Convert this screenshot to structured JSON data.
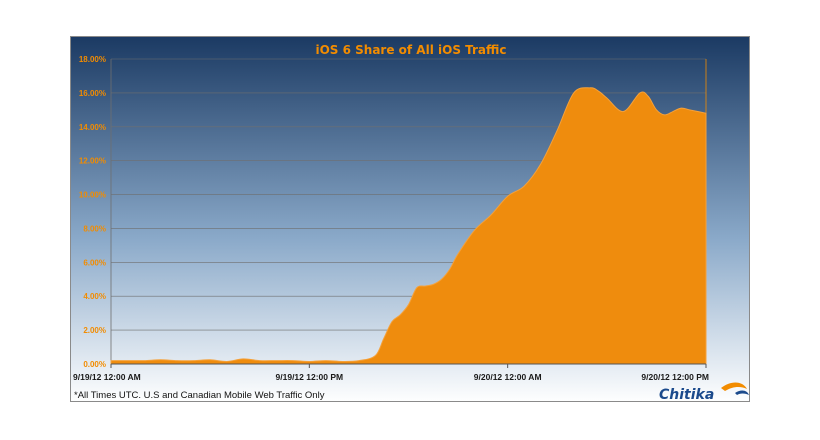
{
  "colors": {
    "bg_top": "#1b3a63",
    "bg_mid": "#8aa9c9",
    "bg_bottom": "#ffffff",
    "area_fill": "#ef8c0d",
    "area_edge": "#f5a13a",
    "title": "#f28c00",
    "ytick": "#f28c00",
    "grid": "#6f6f6f",
    "brand": "#1b4a8c",
    "brand_accent": "#f28c00"
  },
  "footnote": "*All Times UTC. U.S and Canadian Mobile Web Traffic Only",
  "brand": {
    "name": "Chitika",
    "logo_icon": "swoosh-icon"
  },
  "chart_data": {
    "type": "area",
    "title": "iOS 6 Share of All iOS Traffic",
    "xlabel": "",
    "ylabel": "",
    "ylim": [
      0,
      18
    ],
    "grid": true,
    "legend": "none",
    "y_ticks": [
      "0.00%",
      "2.00%",
      "4.00%",
      "6.00%",
      "8.00%",
      "10.00%",
      "12.00%",
      "14.00%",
      "16.00%",
      "18.00%"
    ],
    "x_ticks": [
      {
        "hour": 0,
        "label": "9/19/12 12:00 AM"
      },
      {
        "hour": 12,
        "label": "9/19/12 12:00 PM"
      },
      {
        "hour": 24,
        "label": "9/20/12 12:00 AM"
      },
      {
        "hour": 36,
        "label": "9/20/12 12:00 PM"
      }
    ],
    "x_unit": "hours from 9/19/12 12:00 AM UTC",
    "series": [
      {
        "x": [
          0,
          1,
          2,
          3,
          4,
          5,
          6,
          7,
          8,
          9,
          10,
          11,
          12,
          13,
          14,
          15,
          16,
          16.5,
          17,
          17.5,
          18,
          18.5,
          19,
          19.5,
          20,
          20.5,
          21,
          22,
          23,
          24,
          25,
          26,
          27,
          28,
          29,
          29.5,
          30,
          31,
          32,
          32.5,
          33,
          33.5,
          34,
          34.5,
          35,
          35.5,
          36
        ],
        "y": [
          0.2,
          0.2,
          0.2,
          0.25,
          0.2,
          0.2,
          0.25,
          0.15,
          0.3,
          0.2,
          0.2,
          0.2,
          0.15,
          0.2,
          0.15,
          0.2,
          0.5,
          1.5,
          2.5,
          2.9,
          3.5,
          4.5,
          4.6,
          4.7,
          5.0,
          5.6,
          6.5,
          7.9,
          8.8,
          9.9,
          10.5,
          11.8,
          13.8,
          16.0,
          16.3,
          16.1,
          15.7,
          14.9,
          16.0,
          15.8,
          15.0,
          14.7,
          14.9,
          15.1,
          15.0,
          14.9,
          14.8
        ]
      }
    ]
  }
}
